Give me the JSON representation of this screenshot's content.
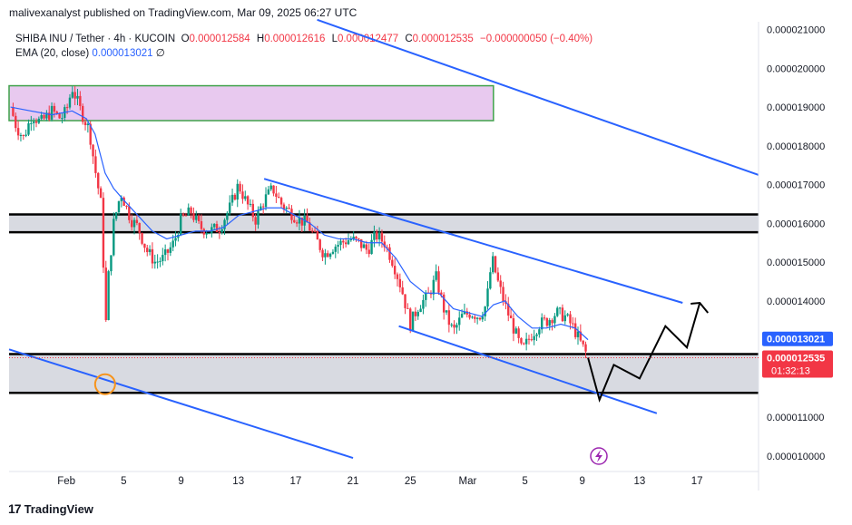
{
  "header": {
    "publisher_line": "malivexanalyst published on TradingView.com, Mar 09, 2025 06:27 UTC"
  },
  "legend": {
    "symbol": "SHIBA INU / Tether · 4h · KUCOIN",
    "o_label": "O",
    "o_value": "0.000012584",
    "h_label": "H",
    "h_value": "0.000012616",
    "l_label": "L",
    "l_value": "0.000012477",
    "c_label": "C",
    "c_value": "0.000012535",
    "change": "−0.000000050 (−0.40%)",
    "ema_label": "EMA (20, close)",
    "ema_value": "0.000013021",
    "ema_suffix": "∅"
  },
  "footer": {
    "brand": "TradingView",
    "logo_glyph": "17"
  },
  "colors": {
    "up": "#089981",
    "down": "#f23645",
    "ema": "#2962ff",
    "channel": "#2962ff",
    "zone_fill": "#d1d4dc",
    "pink_fill": "#e8c9ef",
    "pink_border": "#3fa14a"
  },
  "chart_data": {
    "type": "candlestick",
    "symbol": "SHIBA INU / Tether",
    "interval": "4h",
    "exchange": "KUCOIN",
    "y_ticks": [
      "0.000021000",
      "0.000020000",
      "0.000019000",
      "0.000018000",
      "0.000017000",
      "0.000016000",
      "0.000015000",
      "0.000014000",
      "0.000011000",
      "0.000010000"
    ],
    "y_tick_values": [
      21,
      20,
      19,
      18,
      17,
      16,
      15,
      14,
      11,
      10
    ],
    "ylim": [
      9.6,
      21.2
    ],
    "y_unit_multiplier": 1e-06,
    "x_ticks": [
      "Feb",
      "5",
      "9",
      "13",
      "17",
      "21",
      "25",
      "Mar",
      "5",
      "9",
      "13",
      "17"
    ],
    "x_tick_days": [
      32,
      36,
      40,
      44,
      48,
      52,
      56,
      60,
      64,
      68,
      72,
      76
    ],
    "xlim": [
      28.0,
      80.3
    ],
    "last_price": "0.000012535",
    "last_price_value": 12.535,
    "countdown": "01:32:13",
    "ema_price": "0.000013021",
    "ema_price_value": 13.021,
    "price_path": [
      [
        28.1,
        19.0
      ],
      [
        28.5,
        18.5
      ],
      [
        29.0,
        18.2
      ],
      [
        29.6,
        18.8
      ],
      [
        30.2,
        18.6
      ],
      [
        31.0,
        18.9
      ],
      [
        31.6,
        18.7
      ],
      [
        32.0,
        18.9
      ],
      [
        32.4,
        19.5
      ],
      [
        33.0,
        18.9
      ],
      [
        33.6,
        18.4
      ],
      [
        34.0,
        17.4
      ],
      [
        34.5,
        16.3
      ],
      [
        34.7,
        13.0
      ],
      [
        34.9,
        14.5
      ],
      [
        35.3,
        16.0
      ],
      [
        35.8,
        16.8
      ],
      [
        36.5,
        16.1
      ],
      [
        37.0,
        15.9
      ],
      [
        37.6,
        15.3
      ],
      [
        38.2,
        15.0
      ],
      [
        38.8,
        15.1
      ],
      [
        39.5,
        15.5
      ],
      [
        40.0,
        16.1
      ],
      [
        40.7,
        16.3
      ],
      [
        41.3,
        15.9
      ],
      [
        42.0,
        15.8
      ],
      [
        42.7,
        15.9
      ],
      [
        43.4,
        16.4
      ],
      [
        44.0,
        17.0
      ],
      [
        44.6,
        16.5
      ],
      [
        45.2,
        16.1
      ],
      [
        45.8,
        16.6
      ],
      [
        46.4,
        16.9
      ],
      [
        47.0,
        16.5
      ],
      [
        47.6,
        16.3
      ],
      [
        48.2,
        16.1
      ],
      [
        48.8,
        16.0
      ],
      [
        49.4,
        15.6
      ],
      [
        50.0,
        15.2
      ],
      [
        50.6,
        15.4
      ],
      [
        51.2,
        15.5
      ],
      [
        51.8,
        15.6
      ],
      [
        52.4,
        15.5
      ],
      [
        53.0,
        15.3
      ],
      [
        53.6,
        15.7
      ],
      [
        54.2,
        15.5
      ],
      [
        54.8,
        15.0
      ],
      [
        55.4,
        14.3
      ],
      [
        56.0,
        13.4
      ],
      [
        56.6,
        13.9
      ],
      [
        57.2,
        14.1
      ],
      [
        57.8,
        14.6
      ],
      [
        58.4,
        13.7
      ],
      [
        59.0,
        13.2
      ],
      [
        59.6,
        13.6
      ],
      [
        60.2,
        13.7
      ],
      [
        60.8,
        13.6
      ],
      [
        61.3,
        13.9
      ],
      [
        61.7,
        15.1
      ],
      [
        62.1,
        14.5
      ],
      [
        62.6,
        13.9
      ],
      [
        63.2,
        13.3
      ],
      [
        63.8,
        12.7
      ],
      [
        64.4,
        13.1
      ],
      [
        65.0,
        13.4
      ],
      [
        65.6,
        13.5
      ],
      [
        66.2,
        13.7
      ],
      [
        66.8,
        13.6
      ],
      [
        67.4,
        13.3
      ],
      [
        67.9,
        12.9
      ],
      [
        68.2,
        12.7
      ],
      [
        68.4,
        12.535
      ]
    ],
    "ema_path": [
      [
        28.1,
        19.0
      ],
      [
        29.5,
        18.9
      ],
      [
        31.0,
        18.8
      ],
      [
        32.4,
        18.9
      ],
      [
        33.4,
        18.7
      ],
      [
        34.0,
        18.3
      ],
      [
        34.7,
        17.3
      ],
      [
        35.3,
        16.9
      ],
      [
        36.0,
        16.6
      ],
      [
        37.0,
        16.2
      ],
      [
        38.0,
        15.8
      ],
      [
        39.0,
        15.6
      ],
      [
        40.0,
        15.7
      ],
      [
        41.0,
        15.8
      ],
      [
        42.0,
        15.8
      ],
      [
        43.0,
        15.9
      ],
      [
        44.0,
        16.2
      ],
      [
        45.0,
        16.3
      ],
      [
        46.0,
        16.4
      ],
      [
        47.0,
        16.4
      ],
      [
        48.0,
        16.2
      ],
      [
        49.0,
        16.0
      ],
      [
        50.0,
        15.7
      ],
      [
        51.0,
        15.6
      ],
      [
        52.0,
        15.6
      ],
      [
        53.0,
        15.5
      ],
      [
        54.0,
        15.5
      ],
      [
        55.0,
        15.1
      ],
      [
        56.0,
        14.5
      ],
      [
        57.0,
        14.2
      ],
      [
        58.0,
        14.2
      ],
      [
        59.0,
        13.8
      ],
      [
        60.0,
        13.7
      ],
      [
        61.0,
        13.6
      ],
      [
        61.8,
        13.9
      ],
      [
        62.6,
        14.0
      ],
      [
        63.5,
        13.6
      ],
      [
        64.5,
        13.3
      ],
      [
        65.5,
        13.3
      ],
      [
        66.5,
        13.4
      ],
      [
        67.5,
        13.3
      ],
      [
        68.4,
        13.0
      ]
    ],
    "zones": [
      {
        "name": "resistance-zone",
        "from": 15.77,
        "to": 16.23,
        "x0": 28.0,
        "x1": 80.3
      },
      {
        "name": "support-zone",
        "from": 11.63,
        "to": 12.63,
        "x0": 28.0,
        "x1": 80.3
      },
      {
        "name": "supply-box",
        "from": 18.65,
        "to": 19.55,
        "x0": 28.0,
        "x1": 61.8
      }
    ],
    "trendlines": [
      {
        "name": "outer-channel-top",
        "x0": 49.5,
        "y0": 21.25,
        "x1": 80.3,
        "y1": 17.25
      },
      {
        "name": "outer-channel-bottom",
        "x0": 28.0,
        "y0": 12.75,
        "x1": 52.0,
        "y1": 9.95
      },
      {
        "name": "inner-channel-top",
        "x0": 45.8,
        "y0": 17.15,
        "x1": 75.0,
        "y1": 13.95
      },
      {
        "name": "inner-channel-bottom",
        "x0": 55.2,
        "y0": 13.35,
        "x1": 73.2,
        "y1": 11.1
      }
    ],
    "projection_path": [
      [
        68.4,
        12.535
      ],
      [
        69.2,
        11.45
      ],
      [
        70.2,
        12.35
      ],
      [
        72.0,
        12.0
      ],
      [
        73.8,
        13.35
      ],
      [
        75.3,
        12.8
      ],
      [
        76.2,
        13.95
      ]
    ],
    "marker": {
      "x": 34.7,
      "y": 11.85
    }
  }
}
